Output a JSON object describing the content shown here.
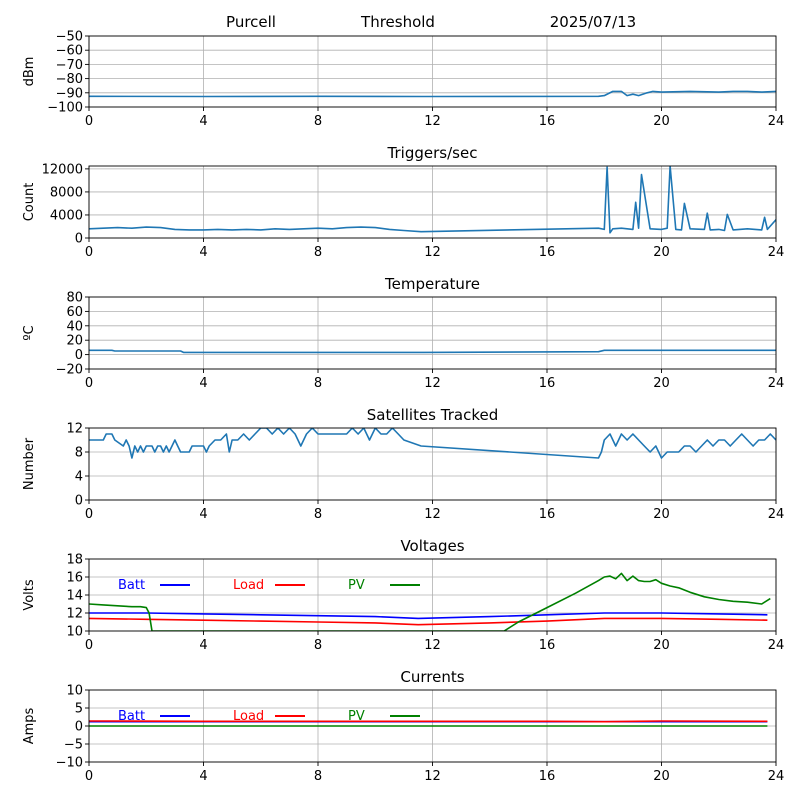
{
  "header": {
    "station": "Purcell",
    "mode": "Threshold",
    "date": "2025/07/13"
  },
  "chart_data": [
    {
      "id": "rssi",
      "type": "line",
      "title": "",
      "xlabel": "",
      "ylabel": "dBm",
      "xlim": [
        0,
        24
      ],
      "ylim": [
        -100,
        -50
      ],
      "xticks": [
        0,
        4,
        8,
        12,
        16,
        20,
        24
      ],
      "yticks": [
        -100,
        -90,
        -80,
        -70,
        -60,
        -50
      ],
      "ytick_labels": [
        "−100",
        "−90",
        "−80",
        "−70",
        "−60",
        "−50"
      ],
      "grid": true,
      "series": [
        {
          "name": "",
          "color": "#1f77b4",
          "x": [
            0,
            4,
            8,
            11.7,
            17.8,
            18.0,
            18.3,
            18.6,
            18.8,
            19.0,
            19.2,
            19.5,
            19.7,
            20.0,
            21.0,
            22.0,
            22.5,
            23.0,
            23.5,
            24.0
          ],
          "y": [
            -92.5,
            -92.6,
            -92.5,
            -92.6,
            -92.5,
            -92,
            -89,
            -89,
            -92,
            -91,
            -92,
            -90,
            -89,
            -89.5,
            -89,
            -89.5,
            -89,
            -89,
            -89.5,
            -89
          ]
        }
      ]
    },
    {
      "id": "triggers",
      "type": "line",
      "title": "Triggers/sec",
      "xlabel": "",
      "ylabel": "Count",
      "xlim": [
        0,
        24
      ],
      "ylim": [
        0,
        12500
      ],
      "xticks": [
        0,
        4,
        8,
        12,
        16,
        20,
        24
      ],
      "yticks": [
        0,
        4000,
        8000,
        12000
      ],
      "ytick_labels": [
        "0",
        "4000",
        "8000",
        "12000"
      ],
      "grid": true,
      "series": [
        {
          "name": "",
          "color": "#1f77b4",
          "x": [
            0,
            0.5,
            1,
            1.5,
            2,
            2.5,
            3,
            3.5,
            4,
            4.5,
            5,
            5.5,
            6,
            6.5,
            7,
            7.5,
            8,
            8.5,
            9,
            9.5,
            10,
            10.5,
            11,
            11.6,
            17.8,
            18.0,
            18.1,
            18.2,
            18.3,
            18.6,
            19.0,
            19.1,
            19.2,
            19.3,
            19.6,
            20.0,
            20.2,
            20.3,
            20.5,
            20.7,
            20.8,
            21.0,
            21.5,
            21.6,
            21.7,
            22.0,
            22.2,
            22.3,
            22.5,
            23.0,
            23.5,
            23.6,
            23.7,
            24.0
          ],
          "y": [
            1600,
            1700,
            1800,
            1700,
            1900,
            1800,
            1500,
            1400,
            1400,
            1500,
            1400,
            1500,
            1400,
            1600,
            1500,
            1600,
            1700,
            1600,
            1800,
            1900,
            1800,
            1500,
            1300,
            1100,
            1700,
            1500,
            12300,
            900,
            1600,
            1700,
            1500,
            6200,
            1700,
            11000,
            1600,
            1500,
            1700,
            12500,
            1500,
            1400,
            6000,
            1600,
            1500,
            4300,
            1400,
            1500,
            1300,
            4100,
            1400,
            1600,
            1400,
            3600,
            1500,
            3200
          ]
        }
      ]
    },
    {
      "id": "temperature",
      "type": "line",
      "title": "Temperature",
      "xlabel": "",
      "ylabel": "ºC",
      "xlim": [
        0,
        24
      ],
      "ylim": [
        -20,
        80
      ],
      "xticks": [
        0,
        4,
        8,
        12,
        16,
        20,
        24
      ],
      "yticks": [
        -20,
        0,
        20,
        40,
        60,
        80
      ],
      "ytick_labels": [
        "−20",
        "0",
        "20",
        "40",
        "60",
        "80"
      ],
      "grid": true,
      "series": [
        {
          "name": "",
          "color": "#1f77b4",
          "x": [
            0,
            0.8,
            0.9,
            3.2,
            3.3,
            11.7,
            17.8,
            18.0,
            20,
            24
          ],
          "y": [
            6,
            6,
            5,
            5,
            3,
            3,
            4,
            6,
            6,
            6
          ]
        }
      ]
    },
    {
      "id": "satellites",
      "type": "line",
      "title": "Satellites Tracked",
      "xlabel": "",
      "ylabel": "Number",
      "xlim": [
        0,
        24
      ],
      "ylim": [
        0,
        12
      ],
      "xticks": [
        0,
        4,
        8,
        12,
        16,
        20,
        24
      ],
      "yticks": [
        0,
        4,
        8,
        12
      ],
      "ytick_labels": [
        "0",
        "4",
        "8",
        "12"
      ],
      "grid": true,
      "series": [
        {
          "name": "",
          "color": "#1f77b4",
          "x": [
            0,
            0.5,
            0.6,
            0.8,
            0.9,
            1.2,
            1.3,
            1.4,
            1.5,
            1.6,
            1.7,
            1.8,
            1.9,
            2.0,
            2.1,
            2.2,
            2.3,
            2.4,
            2.5,
            2.6,
            2.7,
            2.8,
            2.9,
            3.0,
            3.1,
            3.2,
            3.5,
            3.6,
            3.7,
            3.8,
            4.0,
            4.1,
            4.2,
            4.4,
            4.6,
            4.8,
            4.9,
            5.0,
            5.2,
            5.4,
            5.6,
            5.8,
            6.0,
            6.2,
            6.4,
            6.6,
            6.8,
            7.0,
            7.2,
            7.4,
            7.6,
            7.8,
            8.0,
            9.0,
            9.2,
            9.4,
            9.6,
            9.8,
            10.0,
            10.2,
            10.4,
            10.6,
            10.8,
            11.0,
            11.6,
            17.8,
            17.9,
            18.0,
            18.2,
            18.4,
            18.5,
            18.6,
            18.8,
            19.0,
            19.2,
            19.4,
            19.6,
            19.8,
            20.0,
            20.2,
            20.4,
            20.6,
            20.8,
            21.0,
            21.2,
            21.4,
            21.6,
            21.8,
            22.0,
            22.2,
            22.4,
            22.6,
            22.8,
            23.0,
            23.2,
            23.4,
            23.6,
            23.8,
            24.0
          ],
          "y": [
            10,
            10,
            11,
            11,
            10,
            9,
            10,
            9,
            7,
            9,
            8,
            9,
            8,
            9,
            9,
            9,
            8,
            9,
            9,
            8,
            9,
            8,
            9,
            10,
            9,
            8,
            8,
            9,
            9,
            9,
            9,
            8,
            9,
            10,
            10,
            11,
            8,
            10,
            10,
            11,
            10,
            11,
            12,
            12,
            11,
            12,
            11,
            12,
            11,
            9,
            11,
            12,
            11,
            11,
            12,
            11,
            12,
            10,
            12,
            11,
            11,
            12,
            11,
            10,
            9,
            7,
            8,
            10,
            11,
            9,
            10,
            11,
            10,
            11,
            10,
            9,
            8,
            9,
            7,
            8,
            8,
            8,
            9,
            9,
            8,
            9,
            10,
            9,
            10,
            10,
            9,
            10,
            11,
            10,
            9,
            10,
            10,
            11,
            10
          ]
        }
      ]
    },
    {
      "id": "voltages",
      "type": "line",
      "title": "Voltages",
      "xlabel": "",
      "ylabel": "Volts",
      "xlim": [
        0,
        24
      ],
      "ylim": [
        10,
        18
      ],
      "xticks": [
        0,
        4,
        8,
        12,
        16,
        20,
        24
      ],
      "yticks": [
        10,
        12,
        14,
        16,
        18
      ],
      "ytick_labels": [
        "10",
        "12",
        "14",
        "16",
        "18"
      ],
      "grid": true,
      "legend": "top-left, inline",
      "series": [
        {
          "name": "Batt",
          "color": "#0000ff",
          "x": [
            0,
            2,
            4,
            6,
            8,
            10,
            11.5,
            14,
            16,
            18,
            20,
            22,
            23.7
          ],
          "y": [
            12.0,
            12.0,
            11.9,
            11.8,
            11.7,
            11.6,
            11.4,
            11.6,
            11.8,
            12.0,
            12.0,
            11.9,
            11.8
          ]
        },
        {
          "name": "Load",
          "color": "#ff0000",
          "x": [
            0,
            2,
            4,
            6,
            8,
            10,
            11.5,
            14,
            16,
            18,
            20,
            22,
            23.7
          ],
          "y": [
            11.4,
            11.3,
            11.2,
            11.1,
            11.0,
            10.9,
            10.7,
            10.9,
            11.1,
            11.4,
            11.4,
            11.3,
            11.2
          ]
        },
        {
          "name": "PV",
          "color": "#008000",
          "x": [
            0,
            0.5,
            1,
            1.5,
            1.8,
            2.0,
            2.1,
            2.2,
            14.5,
            15,
            16,
            17,
            17.8,
            18.0,
            18.2,
            18.4,
            18.6,
            18.8,
            19.0,
            19.2,
            19.4,
            19.6,
            19.8,
            20.0,
            20.3,
            20.6,
            21.0,
            21.5,
            22.0,
            22.5,
            23.0,
            23.5,
            23.8
          ],
          "y": [
            13.0,
            12.9,
            12.8,
            12.7,
            12.7,
            12.6,
            12.0,
            10.0,
            10.0,
            11.0,
            12.6,
            14.2,
            15.6,
            16.0,
            16.1,
            15.8,
            16.4,
            15.6,
            16.1,
            15.6,
            15.5,
            15.5,
            15.7,
            15.3,
            15.0,
            14.8,
            14.3,
            13.8,
            13.5,
            13.3,
            13.2,
            13.0,
            13.6
          ]
        }
      ]
    },
    {
      "id": "currents",
      "type": "line",
      "title": "Currents",
      "xlabel": "",
      "ylabel": "Amps",
      "xlim": [
        0,
        24
      ],
      "ylim": [
        -10,
        10
      ],
      "xticks": [
        0,
        4,
        8,
        12,
        16,
        20,
        24
      ],
      "yticks": [
        -10,
        -5,
        0,
        5,
        10
      ],
      "ytick_labels": [
        "−10",
        "−5",
        "0",
        "5",
        "10"
      ],
      "grid": true,
      "legend": "top-left, inline",
      "series": [
        {
          "name": "Batt",
          "color": "#0000ff",
          "x": [
            0,
            23.7
          ],
          "y": [
            1.2,
            1.2
          ]
        },
        {
          "name": "Load",
          "color": "#ff0000",
          "x": [
            0,
            4,
            8,
            12,
            16,
            18,
            20,
            23.7
          ],
          "y": [
            1.4,
            1.3,
            1.3,
            1.3,
            1.3,
            1.2,
            1.4,
            1.3
          ]
        },
        {
          "name": "PV",
          "color": "#008000",
          "x": [
            0,
            23.7
          ],
          "y": [
            0,
            0
          ]
        }
      ]
    }
  ]
}
